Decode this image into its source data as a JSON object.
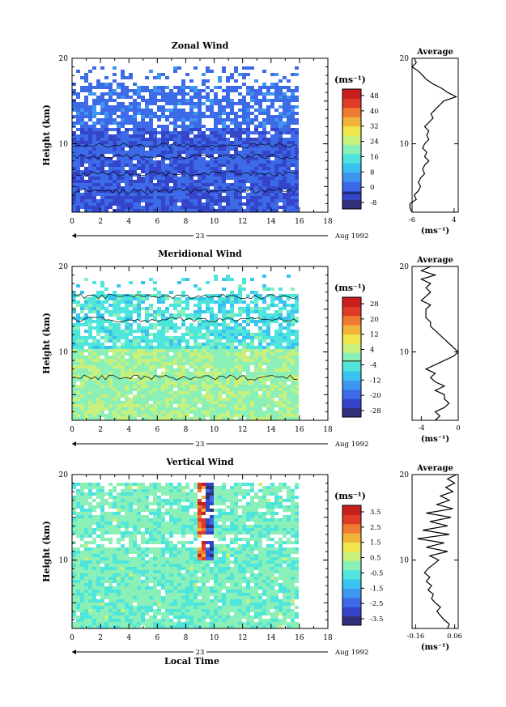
{
  "chart_data": [
    {
      "type": "heatmap",
      "title": "Zonal Wind",
      "ylabel": "Height (km)",
      "xlim": [
        0,
        18
      ],
      "ylim": [
        2,
        20
      ],
      "xticks": [
        "0",
        "2",
        "4",
        "6",
        "8",
        "10",
        "12",
        "14",
        "16",
        "18"
      ],
      "yticks": [
        "10",
        "20"
      ],
      "date_day": "23",
      "date_label": "Aug 1992",
      "unit": "(ms⁻¹)",
      "colorbar": {
        "vmin": -8,
        "vmax": 52,
        "labels": [
          "48",
          "40",
          "32",
          "24",
          "16",
          "8",
          "0",
          "-8"
        ],
        "zero_line": 0
      },
      "average": {
        "title": "Average",
        "xlabel": "(ms⁻¹)",
        "xlim": [
          -6,
          5
        ],
        "xticks": [
          "-6",
          "4"
        ],
        "yticks": [
          "10",
          "20"
        ]
      },
      "profile": [
        [
          2.0,
          -6.0
        ],
        [
          2.5,
          -6.5
        ],
        [
          3.0,
          -6.5
        ],
        [
          3.5,
          -5.0
        ],
        [
          4.0,
          -5.5
        ],
        [
          4.5,
          -4.5
        ],
        [
          5.0,
          -4.0
        ],
        [
          5.5,
          -4.5
        ],
        [
          6.0,
          -4.0
        ],
        [
          6.5,
          -3.0
        ],
        [
          7.0,
          -3.5
        ],
        [
          7.5,
          -3.0
        ],
        [
          8.0,
          -2.0
        ],
        [
          8.5,
          -3.0
        ],
        [
          9.0,
          -2.5
        ],
        [
          9.5,
          -3.5
        ],
        [
          10.0,
          -3.0
        ],
        [
          10.5,
          -2.0
        ],
        [
          11.0,
          -2.5
        ],
        [
          11.5,
          -2.0
        ],
        [
          12.0,
          -3.0
        ],
        [
          12.5,
          -2.0
        ],
        [
          13.0,
          -1.0
        ],
        [
          13.5,
          -1.5
        ],
        [
          14.0,
          -0.5
        ],
        [
          14.5,
          0.5
        ],
        [
          15.0,
          1.5
        ],
        [
          15.5,
          4.5
        ],
        [
          16.0,
          2.5
        ],
        [
          16.5,
          1.0
        ],
        [
          17.0,
          -1.0
        ],
        [
          17.5,
          -2.5
        ],
        [
          18.0,
          -3.5
        ],
        [
          18.5,
          -4.5
        ],
        [
          19.0,
          -6.0
        ],
        [
          19.5,
          -5.0
        ],
        [
          20.0,
          -5.5
        ]
      ]
    },
    {
      "type": "heatmap",
      "title": "Meridional Wind",
      "ylabel": "Height (km)",
      "xlim": [
        0,
        18
      ],
      "ylim": [
        2,
        20
      ],
      "xticks": [
        "0",
        "2",
        "4",
        "6",
        "8",
        "10",
        "12",
        "14",
        "16",
        "18"
      ],
      "yticks": [
        "10",
        "20"
      ],
      "date_day": "23",
      "date_label": "Aug 1992",
      "unit": "(ms⁻¹)",
      "colorbar": {
        "vmin": -28,
        "vmax": 32,
        "labels": [
          "28",
          "20",
          "12",
          "4",
          "-4",
          "-12",
          "-20",
          "-28"
        ],
        "zero_line": 0
      },
      "average": {
        "title": "Average",
        "xlabel": "(ms⁻¹)",
        "xlim": [
          -5,
          0
        ],
        "xticks": [
          "-4",
          "0"
        ],
        "yticks": [
          "10",
          "20"
        ]
      },
      "profile": [
        [
          2.0,
          -2.5
        ],
        [
          2.5,
          -2.0
        ],
        [
          3.0,
          -2.5
        ],
        [
          3.5,
          -1.5
        ],
        [
          4.0,
          -1.0
        ],
        [
          4.5,
          -1.5
        ],
        [
          5.0,
          -1.5
        ],
        [
          5.5,
          -2.5
        ],
        [
          6.0,
          -1.5
        ],
        [
          6.5,
          -2.5
        ],
        [
          7.0,
          -3.0
        ],
        [
          7.5,
          -2.5
        ],
        [
          8.0,
          -3.5
        ],
        [
          8.5,
          -2.5
        ],
        [
          9.0,
          -1.5
        ],
        [
          9.5,
          -0.5
        ],
        [
          10.0,
          0.0
        ],
        [
          10.5,
          -0.5
        ],
        [
          11.0,
          -1.0
        ],
        [
          11.5,
          -1.5
        ],
        [
          12.0,
          -2.0
        ],
        [
          12.5,
          -2.5
        ],
        [
          13.0,
          -3.0
        ],
        [
          13.5,
          -3.0
        ],
        [
          14.0,
          -3.5
        ],
        [
          14.5,
          -3.5
        ],
        [
          15.0,
          -3.5
        ],
        [
          15.5,
          -3.0
        ],
        [
          16.0,
          -4.0
        ],
        [
          16.5,
          -3.5
        ],
        [
          17.0,
          -3.0
        ],
        [
          17.5,
          -3.5
        ],
        [
          18.0,
          -3.0
        ],
        [
          18.5,
          -4.0
        ],
        [
          19.0,
          -2.5
        ],
        [
          19.5,
          -4.0
        ],
        [
          20.0,
          -3.0
        ]
      ]
    },
    {
      "type": "heatmap",
      "title": "Vertical Wind",
      "ylabel": "Height (km)",
      "xlabel": "Local Time",
      "xlim": [
        0,
        18
      ],
      "ylim": [
        2,
        20
      ],
      "xticks": [
        "0",
        "2",
        "4",
        "6",
        "8",
        "10",
        "12",
        "14",
        "16",
        "18"
      ],
      "yticks": [
        "10",
        "20"
      ],
      "date_day": "23",
      "date_label": "Aug 1992",
      "unit": "(ms⁻¹)",
      "colorbar": {
        "vmin": -3.0,
        "vmax": 4.0,
        "labels": [
          "3.5",
          "2.5",
          "1.5",
          "0.5",
          "-0.5",
          "-1.5",
          "-2.5",
          "-3.5"
        ],
        "zero_line": null
      },
      "average": {
        "title": "Average",
        "xlabel": "(ms⁻¹)",
        "xlim": [
          -0.18,
          0.08
        ],
        "xticks": [
          "-0.16",
          "0.06"
        ],
        "yticks": [
          "10",
          "20"
        ]
      },
      "profile": [
        [
          2.0,
          0.02
        ],
        [
          2.5,
          0.03
        ],
        [
          3.0,
          0.0
        ],
        [
          3.5,
          -0.02
        ],
        [
          4.0,
          -0.04
        ],
        [
          4.5,
          -0.02
        ],
        [
          5.0,
          -0.05
        ],
        [
          5.5,
          -0.07
        ],
        [
          6.0,
          -0.06
        ],
        [
          6.5,
          -0.09
        ],
        [
          7.0,
          -0.07
        ],
        [
          7.5,
          -0.1
        ],
        [
          8.0,
          -0.08
        ],
        [
          8.5,
          -0.11
        ],
        [
          9.0,
          -0.09
        ],
        [
          9.5,
          -0.06
        ],
        [
          10.0,
          -0.03
        ],
        [
          10.5,
          -0.08
        ],
        [
          11.0,
          0.02
        ],
        [
          11.5,
          -0.1
        ],
        [
          12.0,
          0.0
        ],
        [
          12.5,
          -0.15
        ],
        [
          13.0,
          0.03
        ],
        [
          13.5,
          -0.12
        ],
        [
          14.0,
          0.02
        ],
        [
          14.5,
          -0.08
        ],
        [
          15.0,
          0.04
        ],
        [
          15.5,
          -0.1
        ],
        [
          16.0,
          0.05
        ],
        [
          16.5,
          -0.04
        ],
        [
          17.0,
          0.03
        ],
        [
          17.5,
          -0.02
        ],
        [
          18.0,
          0.05
        ],
        [
          18.5,
          0.01
        ],
        [
          19.0,
          0.06
        ],
        [
          19.5,
          0.02
        ],
        [
          20.0,
          0.07
        ]
      ]
    }
  ]
}
